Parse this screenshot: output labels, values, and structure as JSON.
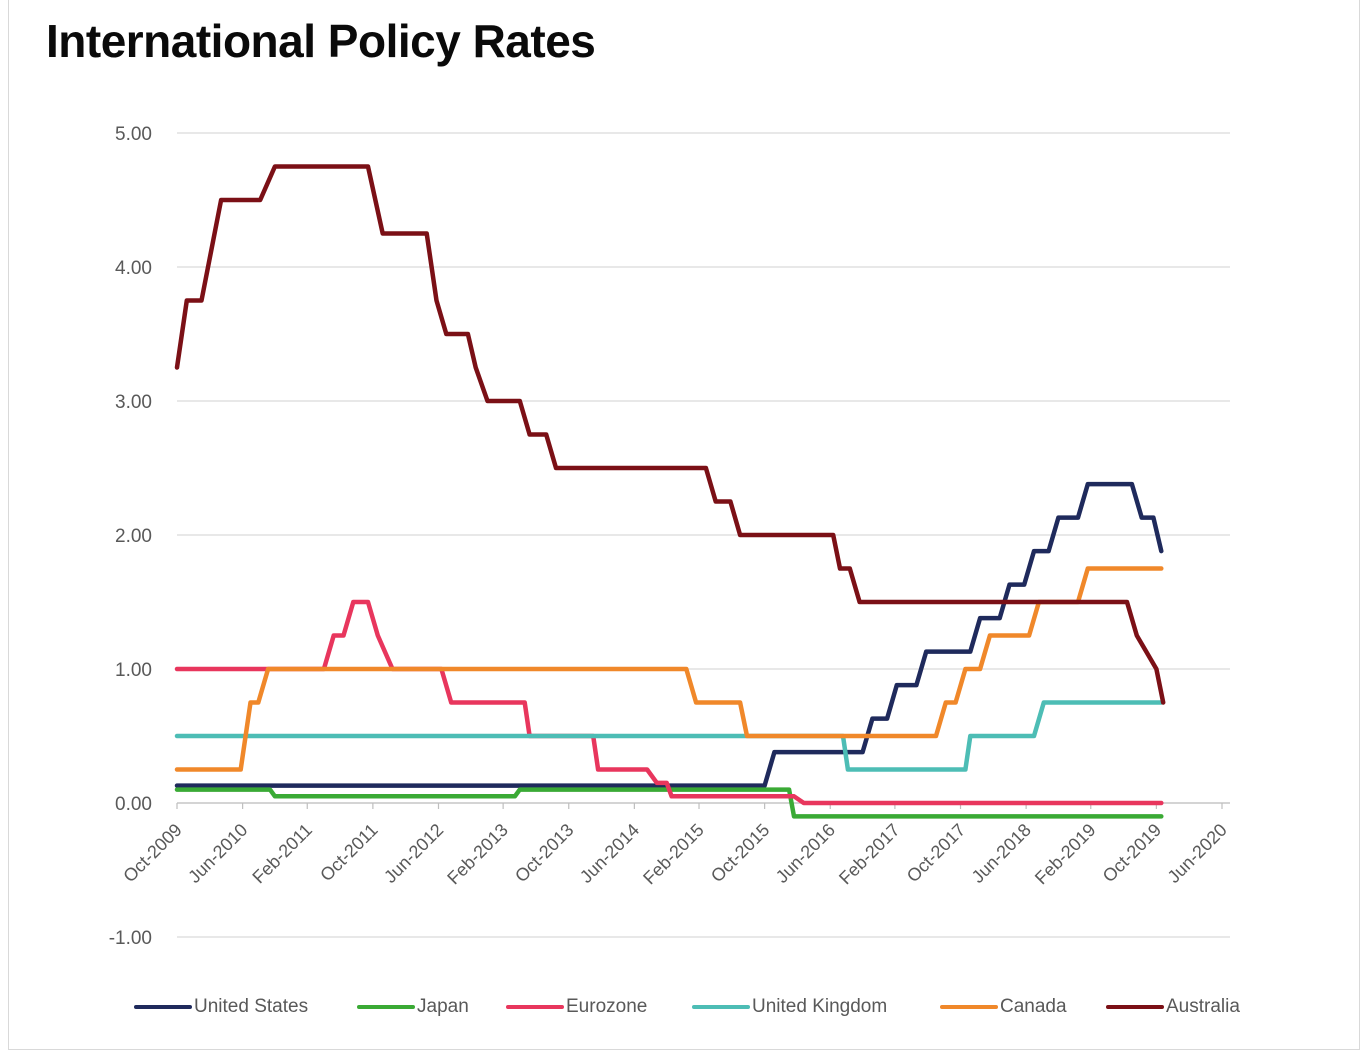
{
  "chart_data": {
    "type": "line",
    "title": "International Policy Rates",
    "xlabel": "",
    "ylabel": "",
    "ylim": [
      -1,
      5
    ],
    "yticks": [
      5,
      4,
      3,
      2,
      1,
      0,
      -1
    ],
    "ytick_labels": [
      "5.00",
      "4.00",
      "3.00",
      "2.00",
      "1.00",
      "0.00",
      "-1.00"
    ],
    "x_start": 2009.75,
    "x_end": 2020.42,
    "xtick_values": [
      2009.75,
      2010.42,
      2011.08,
      2011.75,
      2012.42,
      2013.08,
      2013.75,
      2014.42,
      2015.08,
      2015.75,
      2016.42,
      2017.08,
      2017.75,
      2018.42,
      2019.08,
      2019.75,
      2020.42
    ],
    "xtick_labels": [
      "Oct-2009",
      "Jun-2010",
      "Feb-2011",
      "Oct-2011",
      "Jun-2012",
      "Feb-2013",
      "Oct-2013",
      "Jun-2014",
      "Feb-2015",
      "Oct-2015",
      "Jun-2016",
      "Feb-2017",
      "Oct-2017",
      "Jun-2018",
      "Feb-2019",
      "Oct-2019",
      "Jun-2020"
    ],
    "grid": true,
    "legend_position": "bottom",
    "series": [
      {
        "name": "United States",
        "color": "#1f2a5c",
        "x": [
          2009.75,
          2015.75,
          2015.85,
          2016.75,
          2016.85,
          2017.0,
          2017.1,
          2017.3,
          2017.4,
          2017.85,
          2017.95,
          2018.15,
          2018.25,
          2018.4,
          2018.5,
          2018.65,
          2018.75,
          2018.95,
          2019.05,
          2019.5,
          2019.6,
          2019.72,
          2019.8
        ],
        "y": [
          0.13,
          0.13,
          0.38,
          0.38,
          0.63,
          0.63,
          0.88,
          0.88,
          1.13,
          1.13,
          1.38,
          1.38,
          1.63,
          1.63,
          1.88,
          1.88,
          2.13,
          2.13,
          2.38,
          2.38,
          2.13,
          2.13,
          1.88
        ]
      },
      {
        "name": "Japan",
        "color": "#3aaa35",
        "x": [
          2009.75,
          2010.7,
          2010.75,
          2013.2,
          2013.25,
          2016.0,
          2016.05,
          2019.8
        ],
        "y": [
          0.1,
          0.1,
          0.05,
          0.05,
          0.1,
          0.1,
          -0.1,
          -0.1
        ]
      },
      {
        "name": "Eurozone",
        "color": "#e8365d",
        "x": [
          2009.75,
          2011.25,
          2011.35,
          2011.45,
          2011.55,
          2011.7,
          2011.8,
          2011.95,
          2012.45,
          2012.55,
          2013.3,
          2013.35,
          2014.0,
          2014.05,
          2014.55,
          2014.65,
          2014.75,
          2014.8,
          2016.05,
          2016.15,
          2019.8
        ],
        "y": [
          1.0,
          1.0,
          1.25,
          1.25,
          1.5,
          1.5,
          1.25,
          1.0,
          1.0,
          0.75,
          0.75,
          0.5,
          0.5,
          0.25,
          0.25,
          0.15,
          0.15,
          0.05,
          0.05,
          0.0,
          0.0
        ]
      },
      {
        "name": "United Kingdom",
        "color": "#4dbdb5",
        "x": [
          2009.75,
          2016.55,
          2016.6,
          2017.8,
          2017.85,
          2018.5,
          2018.6,
          2019.8
        ],
        "y": [
          0.5,
          0.5,
          0.25,
          0.25,
          0.5,
          0.5,
          0.75,
          0.75
        ]
      },
      {
        "name": "Canada",
        "color": "#f0882a",
        "x": [
          2009.75,
          2010.4,
          2010.5,
          2010.58,
          2010.68,
          2014.95,
          2015.05,
          2015.5,
          2015.57,
          2017.5,
          2017.6,
          2017.7,
          2017.8,
          2017.95,
          2018.05,
          2018.45,
          2018.55,
          2018.95,
          2019.05,
          2019.8
        ],
        "y": [
          0.25,
          0.25,
          0.75,
          0.75,
          1.0,
          1.0,
          0.75,
          0.75,
          0.5,
          0.5,
          0.75,
          0.75,
          1.0,
          1.0,
          1.25,
          1.25,
          1.5,
          1.5,
          1.75,
          1.75
        ]
      },
      {
        "name": "Australia",
        "color": "#7b1016",
        "x": [
          2009.75,
          2009.85,
          2009.9,
          2010.0,
          2010.2,
          2010.4,
          2010.6,
          2010.75,
          2011.7,
          2011.85,
          2011.92,
          2012.3,
          2012.4,
          2012.5,
          2012.72,
          2012.8,
          2012.92,
          2013.25,
          2013.35,
          2013.52,
          2013.62,
          2015.15,
          2015.25,
          2015.4,
          2015.5,
          2016.45,
          2016.52,
          2016.62,
          2016.72,
          2019.45,
          2019.55,
          2019.75,
          2019.82
        ],
        "y": [
          3.25,
          3.75,
          3.75,
          3.75,
          4.5,
          4.5,
          4.5,
          4.75,
          4.75,
          4.25,
          4.25,
          4.25,
          3.75,
          3.5,
          3.5,
          3.25,
          3.0,
          3.0,
          2.75,
          2.75,
          2.5,
          2.5,
          2.25,
          2.25,
          2.0,
          2.0,
          1.75,
          1.75,
          1.5,
          1.5,
          1.25,
          1.0,
          0.75
        ]
      }
    ]
  }
}
